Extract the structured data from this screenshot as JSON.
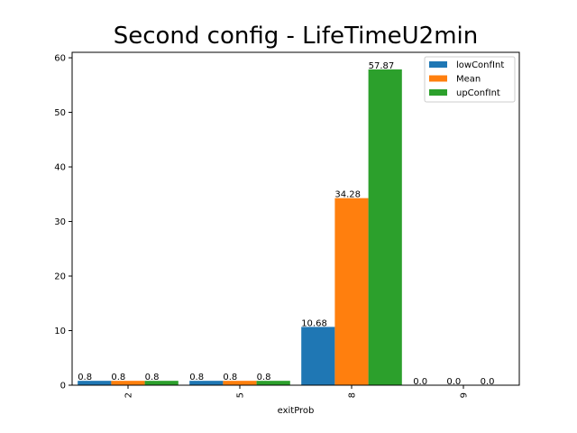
{
  "chart_data": {
    "type": "bar",
    "title": "Second config - LifeTimeU2min",
    "xlabel": "exitProb",
    "ylabel": "",
    "categories": [
      "2",
      "5",
      "8",
      "9"
    ],
    "ylim": [
      0,
      61
    ],
    "yticks": [
      0,
      10,
      20,
      30,
      40,
      50,
      60
    ],
    "legend_position": "top-right",
    "grid": false,
    "series": [
      {
        "name": "lowConfInt",
        "color": "#1f77b4",
        "values": [
          0.8,
          0.8,
          10.68,
          0.0
        ],
        "labels": [
          "0.8",
          "0.8",
          "10.68",
          "0.0"
        ]
      },
      {
        "name": "Mean",
        "color": "#ff7f0e",
        "values": [
          0.8,
          0.8,
          34.28,
          0.0
        ],
        "labels": [
          "0.8",
          "0.8",
          "34.28",
          "0.0"
        ]
      },
      {
        "name": "upConfInt",
        "color": "#2ca02c",
        "values": [
          0.8,
          0.8,
          57.87,
          0.0
        ],
        "labels": [
          "0.8",
          "0.8",
          "57.87",
          "0.0"
        ]
      }
    ]
  }
}
